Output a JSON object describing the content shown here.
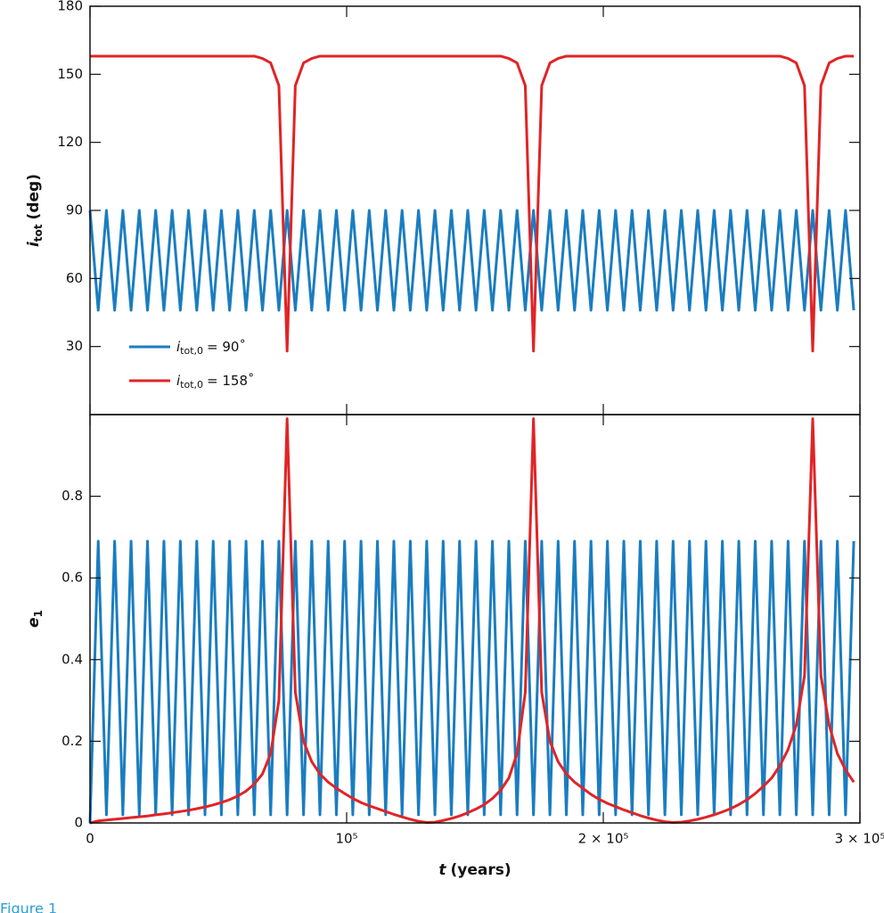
{
  "chart_data": [
    {
      "type": "line",
      "ylabel": "i",
      "ylabel_sub": "tot",
      "ylabel_unit": "(deg)",
      "xlim": [
        0,
        300000
      ],
      "xticks": [
        0,
        {
          "value": 100000,
          "label": "10⁵"
        },
        {
          "value": 200000,
          "label": "2 × 10⁵"
        },
        {
          "value": 300000,
          "label": "3 × 10⁵"
        }
      ],
      "ylim": [
        0,
        180
      ],
      "yticks": [
        30,
        60,
        90,
        120,
        150,
        180
      ],
      "legend": "lower left",
      "x": [
        0,
        3200,
        6400,
        9600,
        12800,
        16000,
        19200,
        22400,
        25600,
        28800,
        32000,
        35200,
        38400,
        41600,
        44800,
        48000,
        51200,
        54400,
        57600,
        60800,
        64000,
        67200,
        70400,
        73600,
        76800,
        80000,
        83200,
        86400,
        89600,
        92800,
        96000,
        99200,
        102400,
        105600,
        108800,
        112000,
        115200,
        118400,
        121600,
        124800,
        128000,
        131200,
        134400,
        137600,
        140800,
        144000,
        147200,
        150400,
        153600,
        156800,
        160000,
        163200,
        166400,
        169600,
        172800,
        176000,
        179200,
        182400,
        185600,
        188800,
        192000,
        195200,
        198400,
        201600,
        204800,
        208000,
        211200,
        214400,
        217600,
        220800,
        224000,
        227200,
        230400,
        233600,
        236800,
        240000,
        243200,
        246400,
        249600,
        252800,
        256000,
        259200,
        262400,
        265600,
        268800,
        272000,
        275200,
        278400,
        281600,
        284800,
        288000,
        291200,
        294400,
        297600
      ],
      "series": [
        {
          "name": "i",
          "name_sub": "tot,0",
          "name_rest": "= 90˚",
          "color": "#1a7dc0",
          "values": [
            90,
            46,
            90,
            46,
            90,
            46,
            90,
            46,
            90,
            46,
            90,
            46,
            90,
            46,
            90,
            46,
            90,
            46,
            90,
            46,
            90,
            46,
            90,
            46,
            90,
            46,
            90,
            46,
            90,
            46,
            90,
            46,
            90,
            46,
            90,
            46,
            90,
            46,
            90,
            46,
            90,
            46,
            90,
            46,
            90,
            46,
            90,
            46,
            90,
            46,
            90,
            46,
            90,
            46,
            90,
            46,
            90,
            46,
            90,
            46,
            90,
            46,
            90,
            46,
            90,
            46,
            90,
            46,
            90,
            46,
            90,
            46,
            90,
            46,
            90,
            46,
            90,
            46,
            90,
            46,
            90,
            46,
            90,
            46,
            90,
            46,
            90,
            46,
            90,
            46,
            90,
            46,
            90,
            46
          ]
        },
        {
          "name": "i",
          "name_sub": "tot,0",
          "name_rest": "= 158˚",
          "color": "#e02427",
          "values": [
            158,
            158,
            158,
            158,
            158,
            158,
            158,
            158,
            158,
            158,
            158,
            158,
            158,
            158,
            158,
            158,
            158,
            158,
            158,
            158,
            158,
            157,
            155,
            145,
            28,
            145,
            155,
            157,
            158,
            158,
            158,
            158,
            158,
            158,
            158,
            158,
            158,
            158,
            158,
            158,
            158,
            158,
            158,
            158,
            158,
            158,
            158,
            158,
            158,
            158,
            158,
            157,
            155,
            145,
            28,
            145,
            155,
            157,
            158,
            158,
            158,
            158,
            158,
            158,
            158,
            158,
            158,
            158,
            158,
            158,
            158,
            158,
            158,
            158,
            158,
            158,
            158,
            158,
            158,
            158,
            158,
            158,
            158,
            158,
            158,
            157,
            155,
            145,
            28,
            145,
            155,
            157,
            158,
            158
          ]
        }
      ]
    },
    {
      "type": "line",
      "ylabel": "e",
      "ylabel_sub": "1",
      "xlabel": "t",
      "xlabel_unit": "(years)",
      "xlim": [
        0,
        300000
      ],
      "xticks": [
        0,
        {
          "value": 100000,
          "label": "10⁵"
        },
        {
          "value": 200000,
          "label": "2 × 10⁵"
        },
        {
          "value": 300000,
          "label": "3 × 10⁵"
        }
      ],
      "ylim": [
        0,
        1
      ],
      "yticks": [
        0,
        0.2,
        0.4,
        0.6,
        0.8
      ],
      "x": [
        0,
        3200,
        6400,
        9600,
        12800,
        16000,
        19200,
        22400,
        25600,
        28800,
        32000,
        35200,
        38400,
        41600,
        44800,
        48000,
        51200,
        54400,
        57600,
        60800,
        64000,
        67200,
        70400,
        73600,
        76800,
        80000,
        83200,
        86400,
        89600,
        92800,
        96000,
        99200,
        102400,
        105600,
        108800,
        112000,
        115200,
        118400,
        121600,
        124800,
        128000,
        131200,
        134400,
        137600,
        140800,
        144000,
        147200,
        150400,
        153600,
        156800,
        160000,
        163200,
        166400,
        169600,
        172800,
        176000,
        179200,
        182400,
        185600,
        188800,
        192000,
        195200,
        198400,
        201600,
        204800,
        208000,
        211200,
        214400,
        217600,
        220800,
        224000,
        227200,
        230400,
        233600,
        236800,
        240000,
        243200,
        246400,
        249600,
        252800,
        256000,
        259200,
        262400,
        265600,
        268800,
        272000,
        275200,
        278400,
        281600,
        284800,
        288000,
        291200,
        294400,
        297600
      ],
      "series": [
        {
          "color": "#1a7dc0",
          "values": [
            0,
            0.69,
            0.02,
            0.69,
            0.02,
            0.69,
            0.02,
            0.69,
            0.02,
            0.69,
            0.02,
            0.69,
            0.02,
            0.69,
            0.02,
            0.69,
            0.02,
            0.69,
            0.02,
            0.69,
            0.02,
            0.69,
            0.02,
            0.69,
            0.02,
            0.69,
            0.02,
            0.69,
            0.02,
            0.69,
            0.02,
            0.69,
            0.02,
            0.69,
            0.02,
            0.69,
            0.02,
            0.69,
            0.02,
            0.69,
            0.02,
            0.69,
            0.02,
            0.69,
            0.02,
            0.69,
            0.02,
            0.69,
            0.02,
            0.69,
            0.02,
            0.69,
            0.02,
            0.69,
            0.02,
            0.69,
            0.02,
            0.69,
            0.02,
            0.69,
            0.02,
            0.69,
            0.02,
            0.69,
            0.02,
            0.69,
            0.02,
            0.69,
            0.02,
            0.69,
            0.02,
            0.69,
            0.02,
            0.69,
            0.02,
            0.69,
            0.02,
            0.69,
            0.02,
            0.69,
            0.02,
            0.69,
            0.02,
            0.69,
            0.02,
            0.69,
            0.02,
            0.69,
            0.02,
            0.69,
            0.02,
            0.69,
            0.02,
            0.69
          ]
        },
        {
          "color": "#e02427",
          "values": [
            0,
            0.005,
            0.007,
            0.009,
            0.011,
            0.013,
            0.015,
            0.017,
            0.02,
            0.022,
            0.025,
            0.028,
            0.031,
            0.035,
            0.039,
            0.044,
            0.05,
            0.057,
            0.066,
            0.078,
            0.095,
            0.12,
            0.17,
            0.3,
            0.99,
            0.32,
            0.2,
            0.15,
            0.12,
            0.1,
            0.085,
            0.072,
            0.06,
            0.05,
            0.042,
            0.035,
            0.028,
            0.021,
            0.015,
            0.009,
            0.004,
            0.001,
            0.002,
            0.006,
            0.011,
            0.017,
            0.025,
            0.034,
            0.045,
            0.06,
            0.08,
            0.11,
            0.17,
            0.32,
            0.99,
            0.32,
            0.2,
            0.15,
            0.12,
            0.1,
            0.085,
            0.07,
            0.058,
            0.048,
            0.04,
            0.032,
            0.025,
            0.018,
            0.012,
            0.007,
            0.003,
            0.001,
            0.002,
            0.005,
            0.009,
            0.014,
            0.02,
            0.027,
            0.035,
            0.045,
            0.057,
            0.072,
            0.09,
            0.11,
            0.14,
            0.18,
            0.24,
            0.36,
            0.99,
            0.36,
            0.24,
            0.17,
            0.13,
            0.1
          ]
        }
      ]
    }
  ],
  "caption": "Figure 1"
}
